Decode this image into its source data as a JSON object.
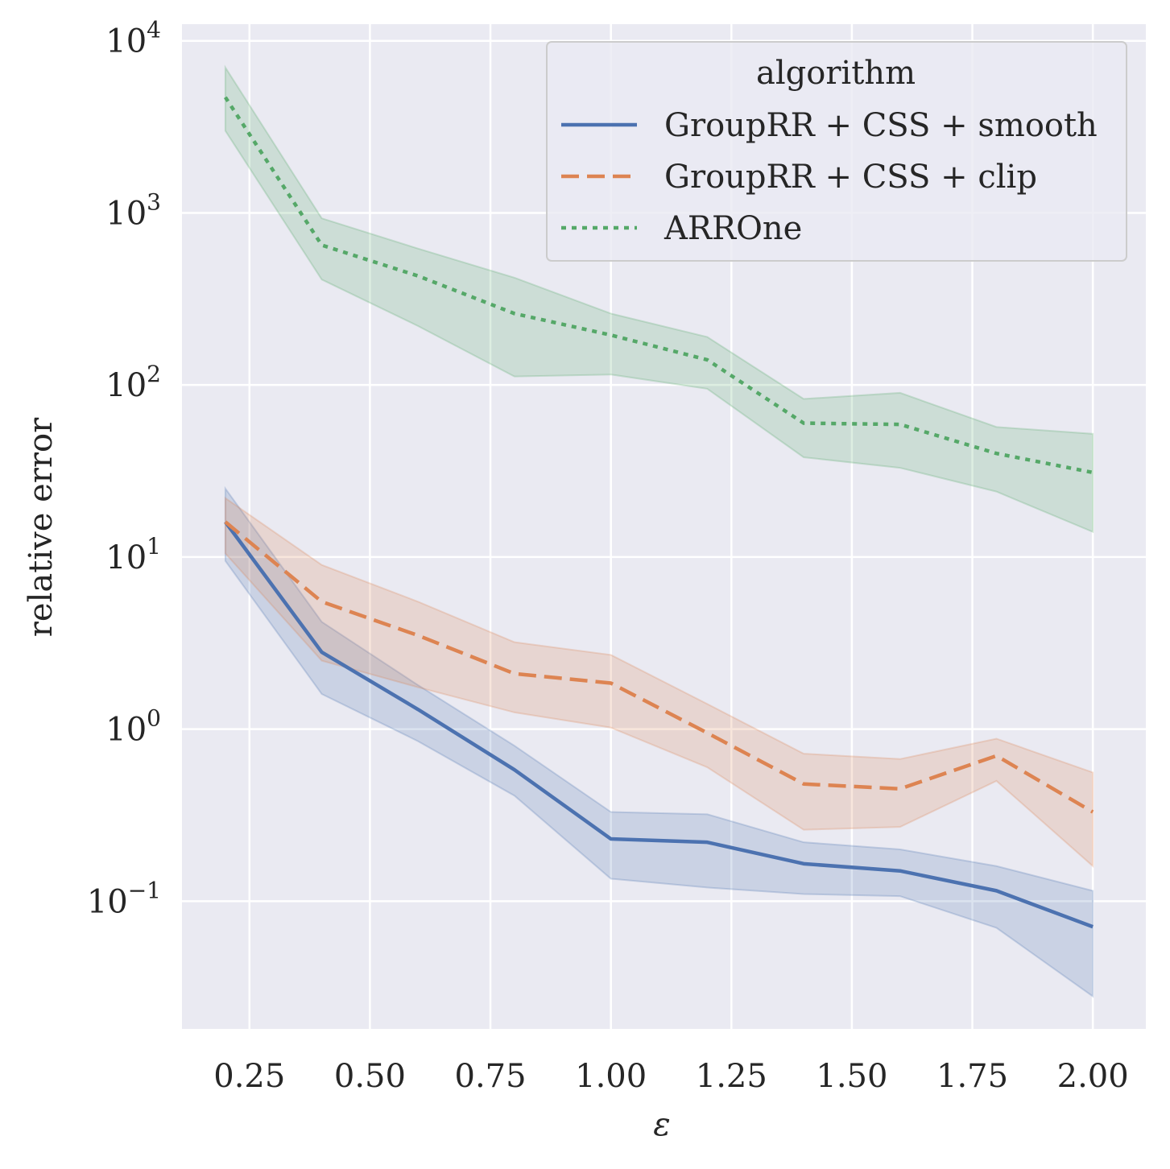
{
  "chart_data": {
    "type": "line",
    "xlabel": "ε",
    "ylabel": "relative error",
    "yscale": "log",
    "xlim": [
      0.11,
      2.11
    ],
    "ylim": [
      0.0181,
      12500
    ],
    "grid": true,
    "x_ticks": [
      0.25,
      0.5,
      0.75,
      1.0,
      1.25,
      1.5,
      1.75,
      2.0
    ],
    "x_tick_labels": [
      "0.25",
      "0.50",
      "0.75",
      "1.00",
      "1.25",
      "1.50",
      "1.75",
      "2.00"
    ],
    "y_ticks": [
      {
        "value": 0.1,
        "base": "10",
        "exp": "−1"
      },
      {
        "value": 1,
        "base": "10",
        "exp": "0"
      },
      {
        "value": 10,
        "base": "10",
        "exp": "1"
      },
      {
        "value": 100,
        "base": "10",
        "exp": "2"
      },
      {
        "value": 1000,
        "base": "10",
        "exp": "3"
      },
      {
        "value": 10000,
        "base": "10",
        "exp": "4"
      }
    ],
    "legend": {
      "title": "algorithm",
      "position": "top-right"
    },
    "x": [
      0.2,
      0.4,
      0.6,
      0.8,
      1.0,
      1.2,
      1.4,
      1.6,
      1.8,
      2.0
    ],
    "series": [
      {
        "name": "GroupRR + CSS + smooth",
        "color": "#4c72b0",
        "dash": "solid",
        "values": [
          16,
          2.8,
          1.3,
          0.58,
          0.23,
          0.22,
          0.165,
          0.15,
          0.115,
          0.071
        ],
        "lower": [
          9.5,
          1.6,
          0.85,
          0.41,
          0.135,
          0.12,
          0.11,
          0.107,
          0.07,
          0.028
        ],
        "upper": [
          25,
          4.2,
          1.8,
          0.8,
          0.33,
          0.32,
          0.22,
          0.2,
          0.16,
          0.115
        ]
      },
      {
        "name": "GroupRR + CSS + clip",
        "color": "#dd8452",
        "dash": "dashed",
        "values": [
          16,
          5.5,
          3.5,
          2.1,
          1.85,
          0.95,
          0.48,
          0.45,
          0.7,
          0.33
        ],
        "lower": [
          10.5,
          2.5,
          1.75,
          1.25,
          1.02,
          0.6,
          0.26,
          0.27,
          0.5,
          0.16
        ],
        "upper": [
          22,
          9,
          5.5,
          3.2,
          2.7,
          1.4,
          0.72,
          0.67,
          0.88,
          0.56
        ]
      },
      {
        "name": "ARROne",
        "color": "#55a868",
        "dash": "dotted",
        "values": [
          4700,
          650,
          430,
          260,
          195,
          140,
          60,
          59,
          40,
          31
        ],
        "lower": [
          3000,
          410,
          220,
          112,
          115,
          95,
          38,
          33,
          24,
          14
        ],
        "upper": [
          7000,
          930,
          620,
          420,
          260,
          190,
          83,
          90,
          57,
          52
        ]
      }
    ]
  }
}
